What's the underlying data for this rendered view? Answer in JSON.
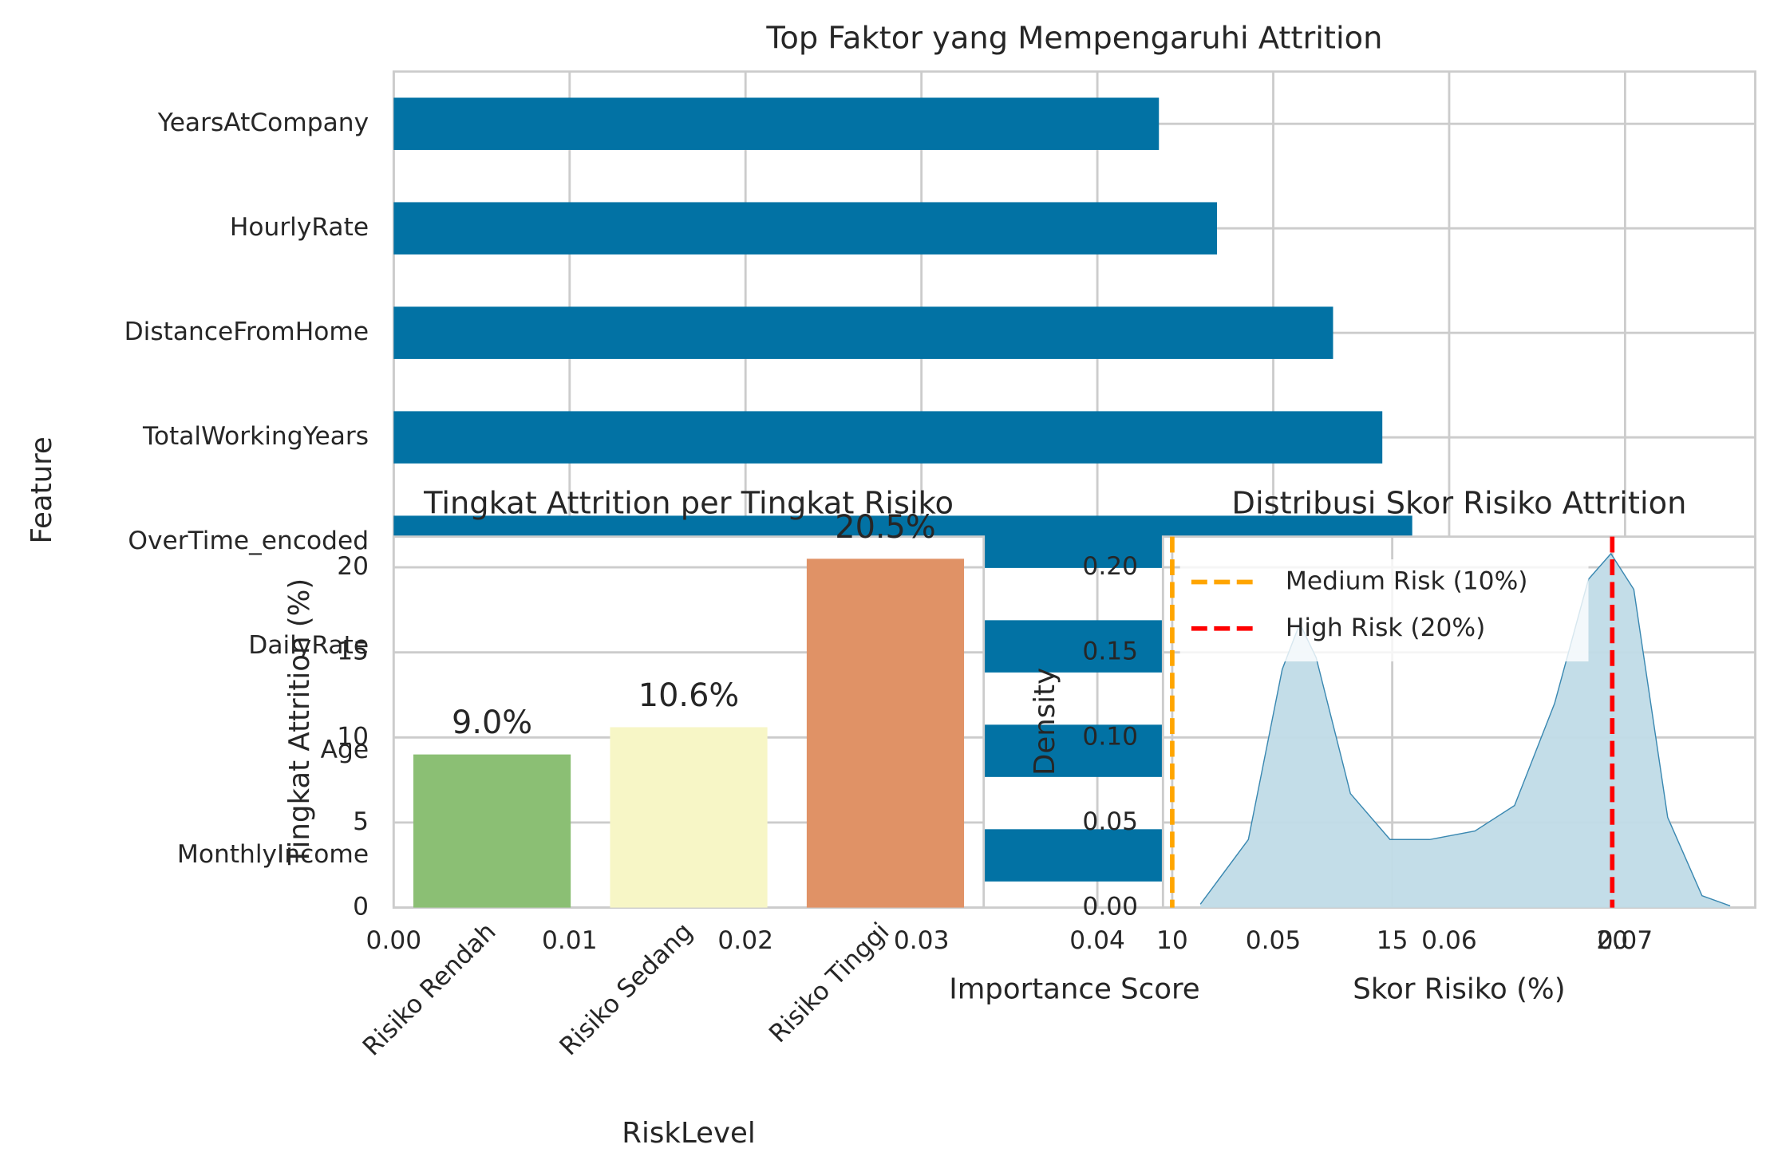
{
  "chart_data": [
    {
      "type": "barh",
      "title": "Top Faktor yang Mempengaruhi Attrition",
      "xlabel": "Importance Score",
      "ylabel": "Feature",
      "categories": [
        "YearsAtCompany",
        "HourlyRate",
        "DistanceFromHome",
        "TotalWorkingYears",
        "OverTime_encoded",
        "DailyRate",
        "Age",
        "MonthlyIncome"
      ],
      "values": [
        0.0435,
        0.0468,
        0.0534,
        0.0562,
        0.0579,
        0.06,
        0.064,
        0.071
      ],
      "color": "#0272a4",
      "xlim": [
        0,
        0.0774
      ],
      "xticks": [
        {
          "value": 0,
          "label": "0.00"
        },
        {
          "value": 0.01,
          "label": "0.01"
        },
        {
          "value": 0.02,
          "label": "0.02"
        },
        {
          "value": 0.03,
          "label": "0.03"
        },
        {
          "value": 0.04,
          "label": "0.04"
        },
        {
          "value": 0.05,
          "label": "0.05"
        },
        {
          "value": 0.06,
          "label": "0.06"
        },
        {
          "value": 0.07,
          "label": "0.07"
        }
      ],
      "grid": true
    },
    {
      "type": "bar",
      "title": "Tingkat Attrition per Tingkat Risiko",
      "xlabel": "RiskLevel",
      "ylabel": "Tingkat Attrition (%)",
      "categories": [
        "Risiko Rendah",
        "Risiko Sedang",
        "Risiko Tinggi"
      ],
      "values": [
        9.0,
        10.6,
        20.5
      ],
      "value_labels": [
        "9.0%",
        "10.6%",
        "20.5%"
      ],
      "colors": [
        "#8bbf74",
        "#f7f6c6",
        "#e09266"
      ],
      "ylim": [
        0,
        21.8
      ],
      "yticks": [
        0,
        5,
        10,
        15,
        20
      ],
      "grid": true
    },
    {
      "type": "density",
      "title": "Distribusi Skor Risiko Attrition",
      "xlabel": "Skor Risiko (%)",
      "ylabel": "Density",
      "x": [
        10.64,
        11.73,
        12.5,
        12.9,
        13.27,
        14.05,
        14.95,
        15.85,
        16.88,
        17.78,
        18.69,
        19.46,
        19.97,
        20.49,
        21.26,
        22.04,
        22.68
      ],
      "values": [
        0.002,
        0.04,
        0.14,
        0.167,
        0.147,
        0.067,
        0.04,
        0.04,
        0.045,
        0.06,
        0.12,
        0.193,
        0.208,
        0.187,
        0.053,
        0.007,
        0.001
      ],
      "color": "#3a88b1",
      "fill": "#c0dbe7",
      "xlim": [
        9.79,
        23.25
      ],
      "xticks": [
        10,
        15,
        20
      ],
      "ylim": [
        0,
        0.218
      ],
      "yticks": [
        {
          "value": 0,
          "label": "0.00"
        },
        {
          "value": 0.05,
          "label": "0.05"
        },
        {
          "value": 0.1,
          "label": "0.10"
        },
        {
          "value": 0.15,
          "label": "0.15"
        },
        {
          "value": 0.2,
          "label": "0.20"
        }
      ],
      "vlines": [
        {
          "x": 10,
          "name": "Medium Risk (10%)",
          "color": "#ffa500"
        },
        {
          "x": 20,
          "name": "High Risk (20%)",
          "color": "#ff0000"
        }
      ],
      "legend": "upper left",
      "grid": true
    }
  ]
}
